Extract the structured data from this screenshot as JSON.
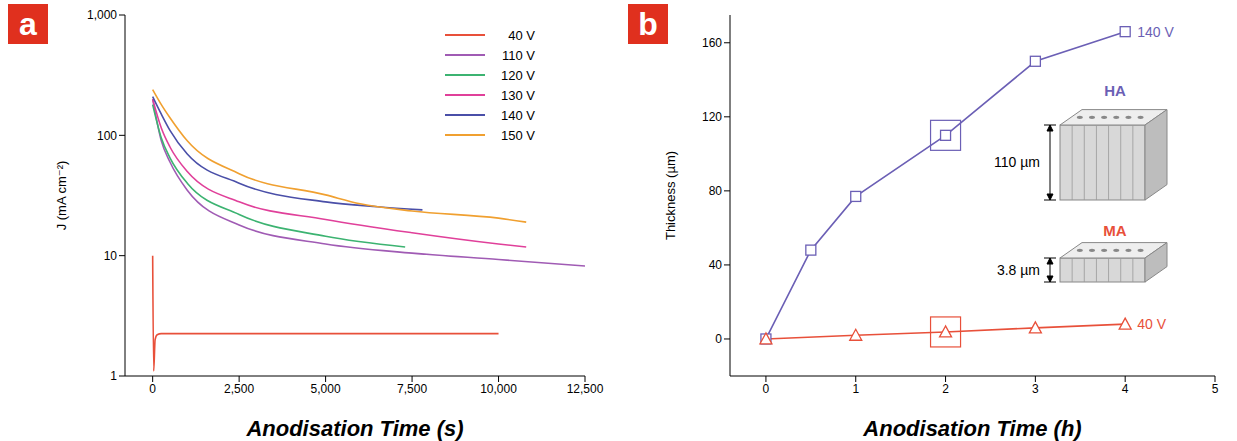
{
  "chart_data": [
    {
      "type": "line",
      "panel": "a",
      "x_label": "Anodisation Time (s)",
      "y_label": "J (mA cm⁻²)",
      "log": "y",
      "xlim": [
        -800,
        12500
      ],
      "xticks": [
        0,
        {
          "value": 2500,
          "label": "2,500"
        },
        {
          "value": 5000,
          "label": "5,000"
        },
        {
          "value": 7500,
          "label": "7,500"
        },
        {
          "value": 10000,
          "label": "10,000"
        },
        {
          "value": 12500,
          "label": "12,500"
        }
      ],
      "ylim": [
        1,
        1000
      ],
      "yticks": [
        1,
        10,
        100,
        {
          "value": 1000,
          "label": "1,000"
        }
      ],
      "legend": "upper right",
      "series": [
        {
          "name": "40 V",
          "color": "#e8503a",
          "x": [
            0,
            30,
            70,
            130,
            250,
            500,
            2500,
            5000,
            7500,
            10000
          ],
          "values": [
            10,
            1.1,
            2.0,
            2.2,
            2.25,
            2.25,
            2.25,
            2.25,
            2.25,
            2.25
          ]
        },
        {
          "name": "110 V",
          "color": "#a05bb4",
          "x": [
            0,
            250,
            500,
            1000,
            2500,
            5000,
            7500,
            10000,
            12500
          ],
          "values": [
            200,
            90,
            60,
            35,
            18,
            12.5,
            10.5,
            9.3,
            8.2
          ]
        },
        {
          "name": "120 V",
          "color": "#3cb371",
          "x": [
            0,
            250,
            500,
            1000,
            2500,
            5000,
            7300
          ],
          "values": [
            180,
            95,
            65,
            40,
            22,
            14.5,
            11.8
          ]
        },
        {
          "name": "130 V",
          "color": "#e0409a",
          "x": [
            0,
            250,
            500,
            1000,
            2500,
            5000,
            7500,
            10000,
            10800
          ],
          "values": [
            200,
            115,
            80,
            50,
            28,
            20,
            15.5,
            12.5,
            11.8
          ]
        },
        {
          "name": "140 V",
          "color": "#4a4fa8",
          "x": [
            0,
            250,
            500,
            1000,
            2500,
            5000,
            6500,
            7800
          ],
          "values": [
            210,
            150,
            110,
            70,
            40,
            28,
            25.5,
            24
          ]
        },
        {
          "name": "150 V",
          "color": "#f0a030",
          "x": [
            0,
            250,
            500,
            1000,
            2500,
            5000,
            6000,
            7500,
            10000,
            10800
          ],
          "values": [
            240,
            180,
            140,
            90,
            48,
            32,
            27,
            23.5,
            20.5,
            19
          ]
        }
      ]
    },
    {
      "type": "line",
      "panel": "b",
      "x_label": "Anodisation Time (h)",
      "y_label": "Thickness (µm)",
      "xlim": [
        -0.4,
        5
      ],
      "xticks": [
        0,
        1,
        2,
        3,
        4,
        5
      ],
      "ylim": [
        -20,
        175
      ],
      "yticks": [
        0,
        40,
        80,
        120,
        160
      ],
      "highlight_x": 2,
      "series": [
        {
          "name": "140 V",
          "color": "#6b5fb5",
          "marker": "square",
          "x": [
            0,
            0.5,
            1,
            2,
            3,
            4
          ],
          "values": [
            0,
            48,
            77,
            110,
            150,
            166
          ]
        },
        {
          "name": "40 V",
          "color": "#e8503a",
          "marker": "triangle",
          "x": [
            0,
            1,
            2,
            3,
            4
          ],
          "values": [
            0,
            2,
            3.8,
            6,
            8
          ]
        }
      ],
      "insets": [
        {
          "label": "HA",
          "thickness_label": "110 µm",
          "color": "#6b5fb5"
        },
        {
          "label": "MA",
          "thickness_label": "3.8 µm",
          "color": "#e8503a"
        }
      ]
    }
  ]
}
